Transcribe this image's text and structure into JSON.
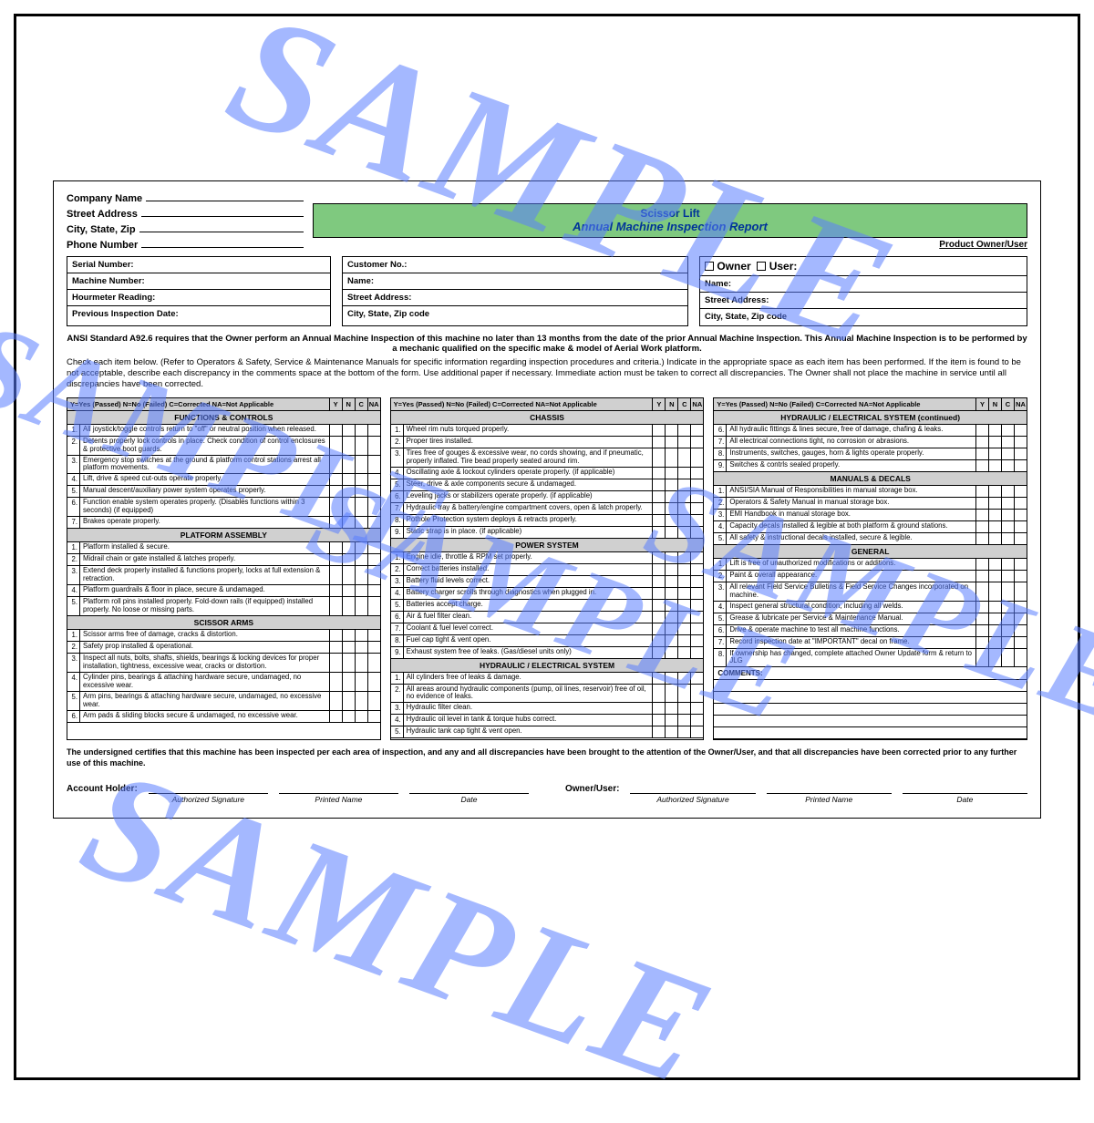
{
  "watermark": "SAMPLE",
  "header": {
    "company_label": "Company Name",
    "street_label": "Street Address",
    "csz_label": "City, State, Zip",
    "phone_label": "Phone Number",
    "title1": "Scissor Lift",
    "title2": "Annual Machine Inspection Report",
    "owner_user": "Product Owner/User"
  },
  "box1": {
    "r1": "Serial Number:",
    "r2": "Machine Number:",
    "r3": "Hourmeter Reading:",
    "r4": "Previous Inspection Date:"
  },
  "box2": {
    "r1": "Customer No.:",
    "r2": "Name:",
    "r3": "Street Address:",
    "r4": "City, State, Zip code"
  },
  "box3": {
    "r1": " Owner    User:",
    "r2": "Name:",
    "r3": "Street Address:",
    "r4": "City, State, Zip code"
  },
  "body": {
    "bold": "ANSI Standard A92.6 requires that the Owner perform an Annual Machine Inspection of this machine no later than 13 months from the date of the prior Annual Machine Inspection.  This Annual Machine Inspection is to be performed by a mechanic qualified on the specific make & model of Aerial Work platform.",
    "reg": "Check each item below. (Refer to Operators & Safety, Service & Maintenance Manuals for specific information regarding inspection procedures and criteria.) Indicate in the appropriate space as each item has been performed. If the item is found to be not acceptable, describe each discrepancy in the comments space at the bottom of the form. Use additional paper if necessary. Immediate action must be taken to correct all discrepancies. The Owner shall not place the machine in service until all discrepancies have been corrected."
  },
  "legend": "Y=Yes (Passed)  N=No (Failed)  C=Corrected  NA=Not Applicable",
  "yn_heads": [
    "Y",
    "N",
    "C",
    "NA"
  ],
  "col1": [
    {
      "sec": "FUNCTIONS & CONTROLS"
    },
    {
      "n": "1.",
      "t": "All joystick/toggle controls return to \"off\" or neutral position when released."
    },
    {
      "n": "2.",
      "t": "Detents properly lock controls in place. Check condition of control enclosures & protective boot guards."
    },
    {
      "n": "3.",
      "t": "Emergency stop switches at the ground & platform control stations arrest all platform movements."
    },
    {
      "n": "4.",
      "t": "Lift, drive & speed cut-outs operate properly."
    },
    {
      "n": "5.",
      "t": "Manual descent/auxiliary power system operates properly."
    },
    {
      "n": "6.",
      "t": "Function enable system operates properly. (Disables functions within 3 seconds) (if equipped)"
    },
    {
      "n": "7.",
      "t": "Brakes operate properly."
    },
    {
      "sec": "PLATFORM ASSEMBLY"
    },
    {
      "n": "1.",
      "t": "Platform installed & secure."
    },
    {
      "n": "2.",
      "t": "Midrail chain or gate installed & latches properly."
    },
    {
      "n": "3.",
      "t": "Extend deck properly installed & functions properly, locks at full extension & retraction."
    },
    {
      "n": "4.",
      "t": "Platform guardrails & floor in place, secure & undamaged."
    },
    {
      "n": "5.",
      "t": "Platform roll pins installed properly. Fold-down rails (if equipped) installed properly. No loose or missing parts."
    },
    {
      "sec": "SCISSOR ARMS"
    },
    {
      "n": "1.",
      "t": "Scissor arms free of damage, cracks & distortion."
    },
    {
      "n": "2.",
      "t": "Safety prop installed & operational."
    },
    {
      "n": "3.",
      "t": "Inspect all nuts, bolts, shafts, shields, bearings & locking devices for proper installation, tightness, excessive wear, cracks or distortion."
    },
    {
      "n": "4.",
      "t": "Cylinder pins, bearings & attaching hardware secure, undamaged, no excessive wear."
    },
    {
      "n": "5.",
      "t": "Arm pins, bearings & attaching hardware secure, undamaged, no excessive wear."
    },
    {
      "n": "6.",
      "t": "Arm pads & sliding blocks secure & undamaged, no excessive wear."
    }
  ],
  "col2": [
    {
      "sec": "CHASSIS"
    },
    {
      "n": "1.",
      "t": "Wheel rim nuts torqued properly."
    },
    {
      "n": "2.",
      "t": "Proper tires installed."
    },
    {
      "n": "3.",
      "t": "Tires free of gouges & excessive wear, no cords showing, and if pneumatic, properly inflated. Tire bead properly seated around rim."
    },
    {
      "n": "4.",
      "t": "Oscillating axle & lockout cylinders operate properly. (if applicable)"
    },
    {
      "n": "5.",
      "t": "Steer, drive & axle components secure & undamaged."
    },
    {
      "n": "6.",
      "t": "Leveling jacks or stabilizers operate properly. (if applicable)"
    },
    {
      "n": "7.",
      "t": "Hydraulic tray & battery/engine compartment covers, open & latch properly."
    },
    {
      "n": "8.",
      "t": "Pothole Protection system deploys & retracts properly."
    },
    {
      "n": "9.",
      "t": "Static strap is in place. (if applicable)"
    },
    {
      "sec": "POWER SYSTEM"
    },
    {
      "n": "1.",
      "t": "Engine idle, throttle & RPM set properly."
    },
    {
      "n": "2.",
      "t": "Correct batteries installed."
    },
    {
      "n": "3.",
      "t": "Battery fluid levels correct."
    },
    {
      "n": "4.",
      "t": "Battery charger scrolls through diagnostics when plugged in."
    },
    {
      "n": "5.",
      "t": "Batteries accept charge."
    },
    {
      "n": "6.",
      "t": "Air & fuel filter clean."
    },
    {
      "n": "7.",
      "t": "Coolant & fuel level correct."
    },
    {
      "n": "8.",
      "t": "Fuel cap tight & vent open."
    },
    {
      "n": "9.",
      "t": "Exhaust system free of leaks. (Gas/diesel units only)"
    },
    {
      "sec": "HYDRAULIC / ELECTRICAL SYSTEM"
    },
    {
      "n": "1.",
      "t": "All cylinders free of leaks & damage."
    },
    {
      "n": "2.",
      "t": "All areas around hydraulic components (pump, oil lines, reservoir) free of oil, no evidence of leaks."
    },
    {
      "n": "3.",
      "t": "Hydraulic filter clean."
    },
    {
      "n": "4.",
      "t": "Hydraulic oil level in tank & torque hubs correct."
    },
    {
      "n": "5.",
      "t": "Hydraulic tank cap tight & vent open."
    }
  ],
  "col3": [
    {
      "sec": "HYDRAULIC / ELECTRICAL SYSTEM (continued)"
    },
    {
      "n": "6.",
      "t": "All hydraulic fittings & lines secure, free of damage, chafing & leaks."
    },
    {
      "n": "7.",
      "t": "All electrical connections tight, no corrosion or abrasions."
    },
    {
      "n": "8.",
      "t": "Instruments, switches, gauges, horn & lights operate properly."
    },
    {
      "n": "9.",
      "t": "Switches & contrls sealed properly."
    },
    {
      "sec": "MANUALS & DECALS"
    },
    {
      "n": "1.",
      "t": "ANSI/SIA Manual of Responsibilities in manual storage box."
    },
    {
      "n": "2.",
      "t": "Operators & Safety Manual in manual storage box."
    },
    {
      "n": "3.",
      "t": "EMI Handbook in manual storage box."
    },
    {
      "n": "4.",
      "t": "Capacity decals installed & legible at both platform & ground stations."
    },
    {
      "n": "5.",
      "t": "All safety & instructional decals installed, secure & legible."
    },
    {
      "sec": "GENERAL"
    },
    {
      "n": "1.",
      "t": "Lift is free of unauthorized modifications or additions."
    },
    {
      "n": "2.",
      "t": "Paint & overall appearance."
    },
    {
      "n": "3.",
      "t": "All relevant Field Service Bulletins & Field Service Changes incorporated on machine."
    },
    {
      "n": "4.",
      "t": "Inspect general structural condition, including all welds."
    },
    {
      "n": "5.",
      "t": "Grease & lubricate per Service & Maintenance Manual."
    },
    {
      "n": "6.",
      "t": "Drive & operate machine to test all machine functions."
    },
    {
      "n": "7.",
      "t": "Record inspection date at \"IMPORTANT\" decal on frame."
    },
    {
      "n": "8.",
      "t": "If ownership has changed, complete attached Owner Update form & return to JLG"
    }
  ],
  "comments_label": "COMMENTS:",
  "footer": {
    "cert": "The undersigned certifies that this machine has been inspected per each area of inspection, and any and all discrepancies have been brought to the attention of the Owner/User, and that all discrepancies have been corrected prior to any further use of this machine.",
    "left_lead": "Account Holder:",
    "right_lead": "Owner/User:",
    "sig_labels": [
      "Authorized Signature",
      "Printed Name",
      "Date"
    ]
  },
  "style": {
    "title_bg": "#7fc97f",
    "title_color": "#003399",
    "watermark_color": "#5b7fff",
    "section_bg": "#d0d0d0",
    "border": "#000000"
  }
}
